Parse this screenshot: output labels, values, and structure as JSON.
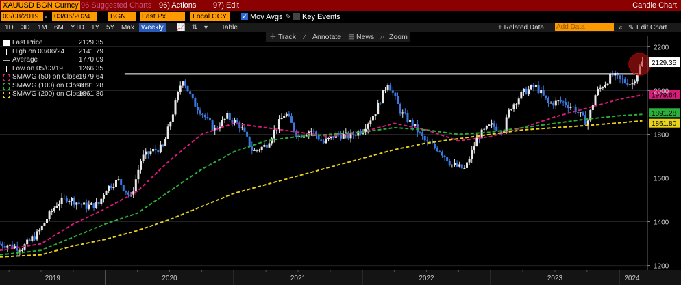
{
  "header": {
    "ticker": "XAUUSD BGN Curncy",
    "suggested_label": "96 Suggested Charts",
    "actions_label": "96) Actions",
    "edit_label": "97) Edit",
    "title": "Candle Chart"
  },
  "controls": {
    "start_date": "03/08/2019",
    "end_date": "03/06/2024",
    "source": "BGN",
    "field": "Last Px",
    "currency": "Local CCY",
    "mov_avgs_label": "Mov Avgs",
    "key_events_label": "Key Events"
  },
  "timeframes": [
    "1D",
    "3D",
    "1M",
    "6M",
    "YTD",
    "1Y",
    "5Y",
    "Max"
  ],
  "periodicity": "Weekly",
  "toolbar": {
    "table_label": "Table",
    "related_label": "+ Related Data",
    "add_data_placeholder": "Add Data",
    "edit_chart_label": "Edit Chart"
  },
  "tools": {
    "track": "Track",
    "annotate": "Annotate",
    "news": "News",
    "zoom": "Zoom"
  },
  "legend": [
    {
      "name": "Last Price",
      "value": "2129.35",
      "color": "#ffffff"
    },
    {
      "name": "High on 03/06/24",
      "value": "2141.79",
      "color": "#ffffff"
    },
    {
      "name": "Average",
      "value": "1770.09",
      "color": "#ffffff"
    },
    {
      "name": "Low on 05/03/19",
      "value": "1266.35",
      "color": "#ffffff"
    },
    {
      "name": "SMAVG (50)  on Close",
      "value": "1979.64",
      "color": "#d81b7a"
    },
    {
      "name": "SMAVG (100)  on Close",
      "value": "1891.28",
      "color": "#2ab03a"
    },
    {
      "name": "SMAVG (200)  on Close",
      "value": "1861.80",
      "color": "#e8d21a"
    }
  ],
  "chart_data": {
    "type": "line",
    "ylim": [
      1180,
      2220
    ],
    "y_ticks": [
      1200,
      1400,
      1600,
      1800,
      2000,
      2200
    ],
    "x_tick_labels": [
      "2019",
      "2020",
      "2021",
      "2022",
      "2023",
      "2024"
    ],
    "resistance_level": 2075,
    "last_price_label": "2129.35",
    "series": [
      {
        "values": [
          [
            2019.18,
            1300
          ],
          [
            2019.35,
            1280
          ],
          [
            2019.48,
            1350
          ],
          [
            2019.55,
            1420
          ],
          [
            2019.62,
            1480
          ],
          [
            2019.7,
            1510
          ],
          [
            2019.85,
            1470
          ],
          [
            2019.95,
            1480
          ],
          [
            2020.0,
            1550
          ],
          [
            2020.1,
            1590
          ],
          [
            2020.2,
            1510
          ],
          [
            2020.28,
            1690
          ],
          [
            2020.35,
            1720
          ],
          [
            2020.45,
            1740
          ],
          [
            2020.55,
            1950
          ],
          [
            2020.6,
            2060
          ],
          [
            2020.68,
            1950
          ],
          [
            2020.75,
            1900
          ],
          [
            2020.85,
            1820
          ],
          [
            2020.95,
            1880
          ],
          [
            2021.05,
            1840
          ],
          [
            2021.15,
            1720
          ],
          [
            2021.25,
            1750
          ],
          [
            2021.4,
            1900
          ],
          [
            2021.5,
            1790
          ],
          [
            2021.6,
            1820
          ],
          [
            2021.7,
            1760
          ],
          [
            2021.8,
            1800
          ],
          [
            2021.9,
            1790
          ],
          [
            2022.0,
            1820
          ],
          [
            2022.1,
            1900
          ],
          [
            2022.2,
            2040
          ],
          [
            2022.3,
            1900
          ],
          [
            2022.4,
            1840
          ],
          [
            2022.5,
            1760
          ],
          [
            2022.6,
            1730
          ],
          [
            2022.7,
            1660
          ],
          [
            2022.8,
            1640
          ],
          [
            2022.9,
            1790
          ],
          [
            2023.0,
            1840
          ],
          [
            2023.1,
            1820
          ],
          [
            2023.15,
            1920
          ],
          [
            2023.25,
            1990
          ],
          [
            2023.35,
            2020
          ],
          [
            2023.45,
            1940
          ],
          [
            2023.55,
            1950
          ],
          [
            2023.65,
            1920
          ],
          [
            2023.75,
            1850
          ],
          [
            2023.82,
            1990
          ],
          [
            2023.9,
            2040
          ],
          [
            2023.95,
            2070
          ],
          [
            2024.0,
            2050
          ],
          [
            2024.1,
            2030
          ],
          [
            2024.18,
            2129
          ]
        ]
      },
      {
        "name": "SMAVG (50)",
        "values": [
          [
            2019.18,
            1270
          ],
          [
            2019.5,
            1300
          ],
          [
            2019.75,
            1390
          ],
          [
            2020.0,
            1460
          ],
          [
            2020.25,
            1540
          ],
          [
            2020.5,
            1680
          ],
          [
            2020.75,
            1800
          ],
          [
            2021.0,
            1850
          ],
          [
            2021.25,
            1830
          ],
          [
            2021.5,
            1810
          ],
          [
            2021.75,
            1790
          ],
          [
            2022.0,
            1810
          ],
          [
            2022.25,
            1850
          ],
          [
            2022.5,
            1820
          ],
          [
            2022.75,
            1770
          ],
          [
            2023.0,
            1790
          ],
          [
            2023.25,
            1830
          ],
          [
            2023.5,
            1880
          ],
          [
            2023.75,
            1920
          ],
          [
            2024.0,
            1960
          ],
          [
            2024.18,
            1979.64
          ]
        ]
      },
      {
        "name": "SMAVG (100)",
        "values": [
          [
            2019.18,
            1250
          ],
          [
            2019.5,
            1270
          ],
          [
            2019.75,
            1330
          ],
          [
            2020.0,
            1390
          ],
          [
            2020.25,
            1440
          ],
          [
            2020.5,
            1540
          ],
          [
            2020.75,
            1640
          ],
          [
            2021.0,
            1720
          ],
          [
            2021.25,
            1770
          ],
          [
            2021.5,
            1790
          ],
          [
            2021.75,
            1800
          ],
          [
            2022.0,
            1810
          ],
          [
            2022.25,
            1830
          ],
          [
            2022.5,
            1820
          ],
          [
            2022.75,
            1800
          ],
          [
            2023.0,
            1810
          ],
          [
            2023.25,
            1830
          ],
          [
            2023.5,
            1850
          ],
          [
            2023.75,
            1870
          ],
          [
            2024.0,
            1885
          ],
          [
            2024.18,
            1891.28
          ]
        ]
      },
      {
        "name": "SMAVG (200)",
        "values": [
          [
            2019.18,
            1240
          ],
          [
            2019.5,
            1250
          ],
          [
            2019.75,
            1290
          ],
          [
            2020.0,
            1320
          ],
          [
            2020.25,
            1360
          ],
          [
            2020.5,
            1410
          ],
          [
            2020.75,
            1470
          ],
          [
            2021.0,
            1530
          ],
          [
            2021.25,
            1570
          ],
          [
            2021.5,
            1610
          ],
          [
            2021.75,
            1650
          ],
          [
            2022.0,
            1690
          ],
          [
            2022.25,
            1730
          ],
          [
            2022.5,
            1760
          ],
          [
            2022.75,
            1780
          ],
          [
            2023.0,
            1800
          ],
          [
            2023.25,
            1820
          ],
          [
            2023.5,
            1830
          ],
          [
            2023.75,
            1840
          ],
          [
            2024.0,
            1852
          ],
          [
            2024.18,
            1861.8
          ]
        ]
      }
    ],
    "ma_axis_labels": [
      {
        "value": "1979.64",
        "color": "#d81b7a"
      },
      {
        "value": "1891.28",
        "color": "#2ab03a"
      },
      {
        "value": "1861.80",
        "color": "#e8d21a"
      }
    ]
  }
}
